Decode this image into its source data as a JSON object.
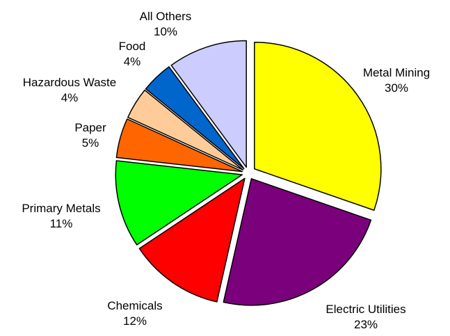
{
  "chart_data": {
    "type": "pie",
    "title": "",
    "slices": [
      {
        "name": "Metal Mining",
        "value": 30,
        "value_label": "30%",
        "color": "#ffff00"
      },
      {
        "name": "Electric Utilities",
        "value": 23,
        "value_label": "23%",
        "color": "#7b007b"
      },
      {
        "name": "Chemicals",
        "value": 12,
        "value_label": "12%",
        "color": "#ff0000"
      },
      {
        "name": "Primary Metals",
        "value": 11,
        "value_label": "11%",
        "color": "#00ff00"
      },
      {
        "name": "Paper",
        "value": 5,
        "value_label": "5%",
        "color": "#ff6600"
      },
      {
        "name": "Hazardous Waste",
        "value": 4,
        "value_label": "4%",
        "color": "#ffcc99"
      },
      {
        "name": "Food",
        "value": 4,
        "value_label": "4%",
        "color": "#0066cc"
      },
      {
        "name": "All Others",
        "value": 10,
        "value_label": "10%",
        "color": "#ccccff"
      }
    ],
    "start_angle": "12 o'clock",
    "direction": "clockwise",
    "exploded": true,
    "legend": "none"
  }
}
